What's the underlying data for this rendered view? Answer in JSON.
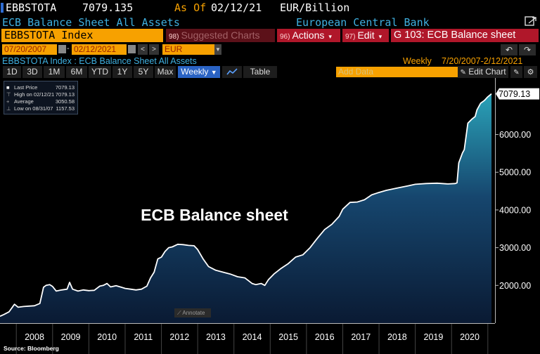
{
  "header": {
    "ticker": "EBBSTOTA",
    "price": "7079.135",
    "as_of_label": "As Of",
    "as_of_date": "02/12/21",
    "unit": "EUR/Billion",
    "description": "ECB Balance Sheet All Assets",
    "issuer": "European Central Bank"
  },
  "toolbar": {
    "security": "EBBSTOTA Index",
    "suggested_num": "98)",
    "suggested_label": "Suggested Charts",
    "actions_num": "96)",
    "actions_label": "Actions",
    "edit_num": "97)",
    "edit_label": "Edit",
    "function_label": "G 103: ECB Balance sheet"
  },
  "range": {
    "start": "07/20/2007",
    "end": "02/12/2021",
    "currency": "EUR",
    "nav_prev": "<",
    "nav_next": ">",
    "undo": "↶",
    "redo": "↷"
  },
  "chart_header": {
    "title": "EBBSTOTA Index : ECB Balance Sheet All Assets",
    "frequency": "Weekly",
    "period": "7/20/2007-2/12/2021"
  },
  "chart_toolbar": {
    "periods": [
      "1D",
      "3D",
      "1M",
      "6M",
      "YTD",
      "1Y",
      "5Y",
      "Max"
    ],
    "frequency": "Weekly",
    "table_label": "Table",
    "add_data_placeholder": "Add Data",
    "edit_chart_label": "Edit Chart"
  },
  "legend": {
    "last_price_label": "Last Price",
    "last_price": "7079.13",
    "high_label": "High on 02/12/21",
    "high": "7079.13",
    "average_label": "Average",
    "average": "3050.58",
    "low_label": "Low on 08/31/07",
    "low": "1157.53"
  },
  "annotate_label": "Annotate",
  "source": "Source: Bloomberg",
  "colors": {
    "accent_orange": "#f7a100",
    "accent_red": "#b0172a",
    "link_blue": "#3fb0e0",
    "area_top": "#2aa2b8",
    "area_bottom": "#0a1a33"
  },
  "chart_data": {
    "type": "area",
    "annotation": "ECB Balance sheet",
    "last_value_label": "7079.13",
    "x_tick_labels": [
      "2008",
      "2009",
      "2010",
      "2011",
      "2012",
      "2013",
      "2014",
      "2015",
      "2016",
      "2017",
      "2018",
      "2019",
      "2020"
    ],
    "y_ticks": [
      2000,
      3000,
      4000,
      5000,
      6000
    ],
    "y_tick_labels": [
      "2000.00",
      "3000.00",
      "4000.00",
      "5000.00",
      "6000.00"
    ],
    "ylim": [
      1000,
      7500
    ],
    "xlim": [
      2007.55,
      2021.12
    ],
    "series": [
      {
        "x": [
          2007.55,
          2007.66,
          2007.8,
          2007.95,
          2008.05,
          2008.2,
          2008.35,
          2008.5,
          2008.65,
          2008.75,
          2008.82,
          2008.92,
          2009.0,
          2009.1,
          2009.25,
          2009.4,
          2009.47,
          2009.55,
          2009.7,
          2009.85,
          2010.0,
          2010.15,
          2010.3,
          2010.4,
          2010.5,
          2010.6,
          2010.75,
          2010.9,
          2011.0,
          2011.15,
          2011.3,
          2011.45,
          2011.6,
          2011.7,
          2011.8,
          2011.9,
          2012.0,
          2012.1,
          2012.2,
          2012.3,
          2012.45,
          2012.6,
          2012.75,
          2012.9,
          2013.0,
          2013.15,
          2013.3,
          2013.5,
          2013.7,
          2013.9,
          2014.1,
          2014.3,
          2014.5,
          2014.6,
          2014.75,
          2014.85,
          2014.95,
          2015.1,
          2015.3,
          2015.5,
          2015.7,
          2015.9,
          2016.1,
          2016.3,
          2016.5,
          2016.7,
          2016.9,
          2017.0,
          2017.2,
          2017.4,
          2017.6,
          2017.8,
          2017.95,
          2018.2,
          2018.5,
          2018.8,
          2019.0,
          2019.3,
          2019.6,
          2019.9,
          2020.1,
          2020.15,
          2020.2,
          2020.3,
          2020.35,
          2020.45,
          2020.55,
          2020.65,
          2020.7,
          2020.8,
          2020.9,
          2021.0,
          2021.1
        ],
        "y": [
          1180,
          1230,
          1300,
          1500,
          1420,
          1440,
          1450,
          1460,
          1520,
          1950,
          2000,
          2020,
          1970,
          1850,
          1880,
          1900,
          2080,
          1900,
          1850,
          1880,
          1860,
          1870,
          1980,
          2000,
          2050,
          1960,
          1990,
          1950,
          1920,
          1900,
          1880,
          1900,
          1980,
          2200,
          2350,
          2700,
          2750,
          2900,
          3000,
          3020,
          3090,
          3080,
          3060,
          3050,
          2950,
          2700,
          2500,
          2400,
          2350,
          2300,
          2230,
          2200,
          2050,
          2020,
          2050,
          2000,
          2150,
          2300,
          2450,
          2580,
          2750,
          2810,
          3000,
          3250,
          3480,
          3620,
          3830,
          4020,
          4200,
          4210,
          4270,
          4400,
          4450,
          4520,
          4580,
          4640,
          4680,
          4700,
          4710,
          4690,
          4700,
          4720,
          5250,
          5510,
          5600,
          6300,
          6400,
          6480,
          6650,
          6830,
          6900,
          7000,
          7079.13
        ]
      }
    ]
  }
}
